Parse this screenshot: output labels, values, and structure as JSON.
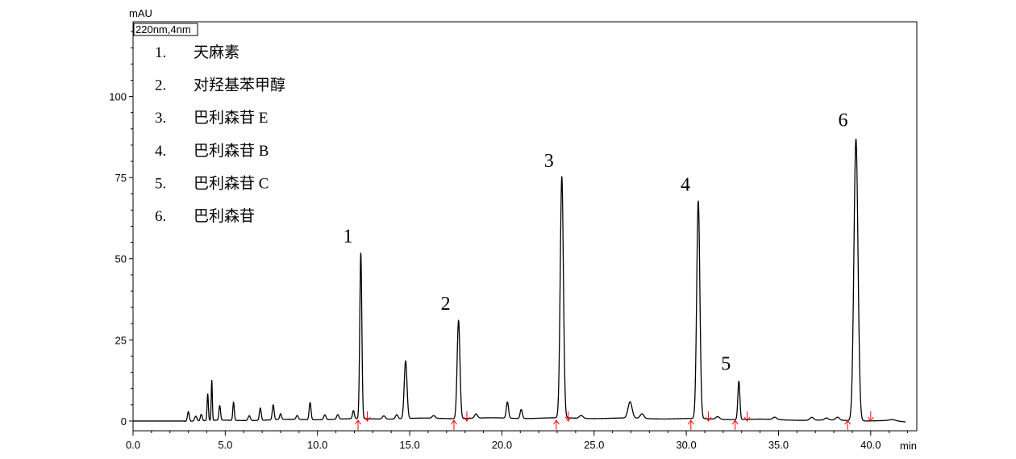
{
  "chart_data": {
    "type": "line",
    "title": "",
    "channel_label": "220nm,4nm",
    "ylabel": "mAU",
    "xlabel": "min",
    "xlim": [
      0,
      42.5
    ],
    "ylim": [
      -3,
      123
    ],
    "x_ticks": [
      0,
      5,
      10,
      15,
      20,
      25,
      30,
      35,
      40
    ],
    "x_tick_labels": [
      "0.0",
      "5.0",
      "10.0",
      "15.0",
      "20.0",
      "25.0",
      "30.0",
      "35.0",
      "40.0"
    ],
    "y_ticks": [
      0,
      25,
      50,
      75,
      100
    ],
    "y_tick_labels": [
      "0",
      "25",
      "50",
      "75",
      "100"
    ],
    "grid": false,
    "line_color": "#000000",
    "marker_color": "#ff0000",
    "series": [
      {
        "peaks": [
          {
            "t": 3.0,
            "h": 3.0,
            "w": 0.05
          },
          {
            "t": 3.4,
            "h": 1.5,
            "w": 0.06
          },
          {
            "t": 3.7,
            "h": 2.0,
            "w": 0.05
          },
          {
            "t": 4.05,
            "h": 8.2,
            "w": 0.035
          },
          {
            "t": 4.27,
            "h": 12.3,
            "w": 0.03
          },
          {
            "t": 4.7,
            "h": 4.5,
            "w": 0.045
          },
          {
            "t": 5.45,
            "h": 5.6,
            "w": 0.04
          },
          {
            "t": 6.3,
            "h": 1.5,
            "w": 0.06
          },
          {
            "t": 6.9,
            "h": 3.8,
            "w": 0.05
          },
          {
            "t": 7.6,
            "h": 4.6,
            "w": 0.05
          },
          {
            "t": 8.0,
            "h": 1.8,
            "w": 0.05
          },
          {
            "t": 8.9,
            "h": 1.2,
            "w": 0.06
          },
          {
            "t": 9.6,
            "h": 5.3,
            "w": 0.05
          },
          {
            "t": 10.4,
            "h": 1.5,
            "w": 0.06
          },
          {
            "t": 11.1,
            "h": 1.4,
            "w": 0.06
          },
          {
            "t": 11.95,
            "h": 2.5,
            "w": 0.05
          },
          {
            "t": 12.35,
            "h": 51.0,
            "w": 0.055
          },
          {
            "t": 13.6,
            "h": 1.0,
            "w": 0.08
          },
          {
            "t": 14.3,
            "h": 1.3,
            "w": 0.07
          },
          {
            "t": 14.78,
            "h": 17.8,
            "w": 0.075
          },
          {
            "t": 16.3,
            "h": 0.8,
            "w": 0.08
          },
          {
            "t": 17.65,
            "h": 30.3,
            "w": 0.075
          },
          {
            "t": 18.6,
            "h": 1.3,
            "w": 0.08
          },
          {
            "t": 20.3,
            "h": 5.0,
            "w": 0.06
          },
          {
            "t": 21.05,
            "h": 2.8,
            "w": 0.06
          },
          {
            "t": 23.25,
            "h": 74.3,
            "w": 0.085
          },
          {
            "t": 24.3,
            "h": 0.9,
            "w": 0.1
          },
          {
            "t": 26.95,
            "h": 5.0,
            "w": 0.11
          },
          {
            "t": 27.6,
            "h": 1.4,
            "w": 0.1
          },
          {
            "t": 30.65,
            "h": 67.0,
            "w": 0.085
          },
          {
            "t": 31.7,
            "h": 0.8,
            "w": 0.1
          },
          {
            "t": 32.85,
            "h": 11.8,
            "w": 0.055
          },
          {
            "t": 34.8,
            "h": 0.7,
            "w": 0.1
          },
          {
            "t": 36.8,
            "h": 0.9,
            "w": 0.1
          },
          {
            "t": 37.6,
            "h": 0.6,
            "w": 0.1
          },
          {
            "t": 38.2,
            "h": 0.9,
            "w": 0.1
          },
          {
            "t": 39.2,
            "h": 86.8,
            "w": 0.11
          },
          {
            "t": 41.2,
            "h": 0.3,
            "w": 0.15
          }
        ]
      }
    ],
    "integration_marks": [
      12.2,
      12.7,
      17.4,
      18.1,
      22.95,
      23.6,
      30.25,
      31.2,
      32.65,
      33.3,
      38.75,
      40.0
    ],
    "peak_labels": [
      {
        "label": "1",
        "t": 12.35,
        "h": 51.0
      },
      {
        "label": "2",
        "t": 17.65,
        "h": 30.3
      },
      {
        "label": "3",
        "t": 23.25,
        "h": 74.3
      },
      {
        "label": "4",
        "t": 30.65,
        "h": 67.0
      },
      {
        "label": "5",
        "t": 32.85,
        "h": 11.8
      },
      {
        "label": "6",
        "t": 39.2,
        "h": 86.8
      }
    ],
    "legend": [
      {
        "num": "1.",
        "name": "天麻素"
      },
      {
        "num": "2.",
        "name": "对羟基苯甲醇"
      },
      {
        "num": "3.",
        "name": "巴利森苷 E"
      },
      {
        "num": "4.",
        "name": "巴利森苷 B"
      },
      {
        "num": "5.",
        "name": "巴利森苷 C"
      },
      {
        "num": "6.",
        "name": "巴利森苷"
      }
    ]
  }
}
